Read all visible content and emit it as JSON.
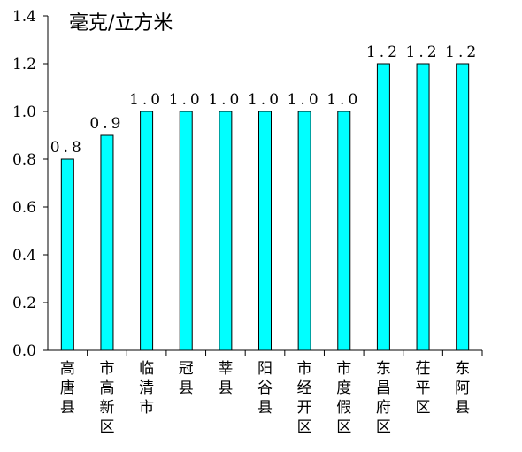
{
  "chart_data": {
    "type": "bar",
    "unit_label": "毫克/立方米",
    "categories": [
      "高唐县",
      "市高新区",
      "临清市",
      "冠县",
      "莘县",
      "阳谷县",
      "市经开区",
      "市度假区",
      "东昌府区",
      "茌平区",
      "东阿县"
    ],
    "values": [
      0.8,
      0.9,
      1.0,
      1.0,
      1.0,
      1.0,
      1.0,
      1.0,
      1.2,
      1.2,
      1.2
    ],
    "value_labels": [
      "0.8",
      "0.9",
      "1.0",
      "1.0",
      "1.0",
      "1.0",
      "1.0",
      "1.0",
      "1.2",
      "1.2",
      "1.2"
    ],
    "ylim": [
      0,
      1.4
    ],
    "yticks": [
      "0.0",
      "0.2",
      "0.4",
      "0.6",
      "0.8",
      "1.0",
      "1.2",
      "1.4"
    ],
    "bar_color": "#00ffff",
    "bar_edge_color": "#000000",
    "grid": false,
    "legend": "none"
  }
}
